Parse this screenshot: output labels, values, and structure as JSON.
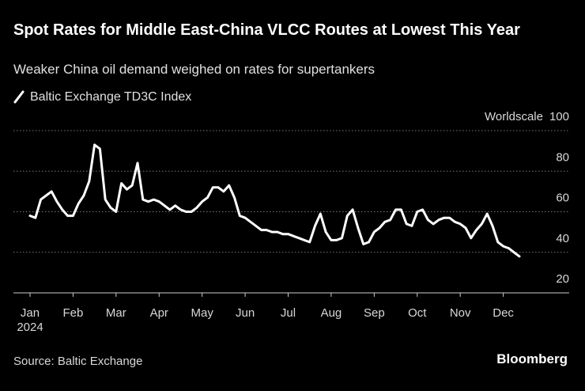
{
  "chart_data": {
    "type": "line",
    "title": "Spot Rates for Middle East-China VLCC Routes at Lowest This Year",
    "subtitle": "Weaker China oil demand weighed on rates for supertankers",
    "y_axis_label": "Worldscale",
    "year_label": "2024",
    "source": "Source: Baltic Exchange",
    "brand": "Bloomberg",
    "categories": [
      "Jan",
      null,
      null,
      null,
      null,
      null,
      null,
      null,
      "Feb",
      null,
      null,
      null,
      null,
      null,
      null,
      null,
      "Mar",
      null,
      null,
      null,
      null,
      null,
      null,
      null,
      "Apr",
      null,
      null,
      null,
      null,
      null,
      null,
      null,
      "May",
      null,
      null,
      null,
      null,
      null,
      null,
      null,
      "Jun",
      null,
      null,
      null,
      null,
      null,
      null,
      null,
      "Jul",
      null,
      null,
      null,
      null,
      null,
      null,
      null,
      "Aug",
      null,
      null,
      null,
      null,
      null,
      null,
      null,
      "Sep",
      null,
      null,
      null,
      null,
      null,
      null,
      null,
      "Oct",
      null,
      null,
      null,
      null,
      null,
      null,
      null,
      "Nov",
      null,
      null,
      null,
      null,
      null,
      null,
      null,
      "Dec",
      null,
      null,
      null
    ],
    "series": [
      {
        "name": "Baltic Exchange TD3C Index",
        "color": "#ffffff",
        "values": [
          58,
          57,
          66,
          68,
          70,
          65,
          61,
          58,
          58,
          64,
          68,
          75,
          93,
          91,
          66,
          62,
          60,
          74,
          71,
          73,
          84,
          66,
          65,
          66,
          65,
          63,
          61,
          63,
          61,
          60,
          60,
          62,
          65,
          67,
          72,
          72,
          70,
          73,
          67,
          58,
          57,
          55,
          53,
          51,
          51,
          50,
          50,
          49,
          49,
          48,
          47,
          46,
          45,
          53,
          59,
          50,
          46,
          46,
          47,
          58,
          61,
          52,
          44,
          45,
          50,
          52,
          55,
          56,
          61,
          61,
          54,
          53,
          60,
          61,
          56,
          54,
          56,
          57,
          57,
          55,
          54,
          52,
          47,
          51,
          54,
          59,
          53,
          45,
          43,
          42,
          40,
          38
        ]
      }
    ],
    "ylim": [
      20,
      100
    ],
    "yticks": [
      20,
      40,
      60,
      80,
      100
    ],
    "grid": true
  }
}
